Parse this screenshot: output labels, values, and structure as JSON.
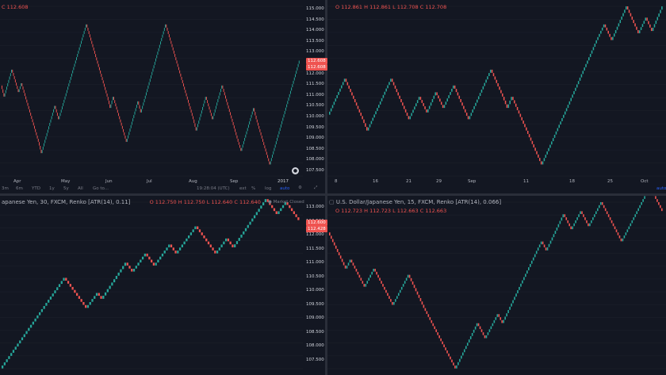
{
  "colors": {
    "up": "#26a69a",
    "down": "#ef5350",
    "bg": "#131722",
    "grid": "#1e222d"
  },
  "panes": [
    {
      "id": "tl",
      "header": {
        "title": "",
        "o": "",
        "h": "",
        "l": "",
        "c": "C 112.608",
        "watermark": ""
      },
      "y_ticks": [
        "115.000",
        "114.500",
        "114.000",
        "113.500",
        "113.000",
        "112.500",
        "112.000",
        "111.500",
        "111.000",
        "110.500",
        "110.000",
        "109.500",
        "109.000",
        "108.500",
        "108.000",
        "107.500"
      ],
      "x_ticks": [
        "Apr",
        "May",
        "Jun",
        "Jul",
        "Aug",
        "Sep",
        "2017"
      ],
      "price_tags": [
        "112.608",
        "112.608"
      ],
      "toolbar": [
        "3m",
        "6m",
        "YTD",
        "1y",
        "5y",
        "All",
        "Go to...",
        "19:28:04 (UTC)",
        "ext",
        "%",
        "log",
        "auto"
      ]
    },
    {
      "id": "tr",
      "header": {
        "title": "",
        "o": "O 112.861",
        "h": "H 112.861",
        "l": "L 112.708",
        "c": "C 112.708",
        "watermark": ""
      },
      "y_ticks": [],
      "x_ticks": [
        "8",
        "16",
        "21",
        "29",
        "Sep",
        "11",
        "18",
        "25",
        "Oct"
      ],
      "price_tags": [],
      "toolbar": [
        "auto"
      ]
    },
    {
      "id": "bl",
      "header": {
        "title": "apanese Yen, 30, FXCM, Renko [ATR(14), 0.11]",
        "o": "O 112.750",
        "h": "H 112.750",
        "l": "L 112.640",
        "c": "C 112.640",
        "watermark": "Market Closed"
      },
      "y_ticks": [
        "113.000",
        "112.500",
        "112.000",
        "111.500",
        "111.000",
        "110.500",
        "110.000",
        "109.500",
        "109.000",
        "108.500",
        "108.000",
        "107.500"
      ],
      "x_ticks": [],
      "price_tags": [
        "112.600",
        "112.428"
      ],
      "toolbar": []
    },
    {
      "id": "br",
      "header": {
        "title": "U.S. Dollar/Japanese Yen, 15, FXCM, Renko [ATR(14), 0.066]",
        "o": "O 112.723",
        "h": "H 112.723",
        "l": "L 112.663",
        "c": "C 112.663",
        "watermark": ""
      },
      "y_ticks": [],
      "x_ticks": [],
      "price_tags": [],
      "toolbar": []
    }
  ],
  "chart_data": [
    {
      "type": "renko",
      "pane": "tl",
      "ylim": [
        107.5,
        115.0
      ],
      "path": [
        111.5,
        111.0,
        112.2,
        111.2,
        111.6,
        109.0,
        108.5,
        110.6,
        110.0,
        114.2,
        111.0,
        110.5,
        111.0,
        109.0,
        110.8,
        110.3,
        111.5,
        113.0,
        114.2,
        110.0,
        109.5,
        111.0,
        110.0,
        111.5,
        109.0,
        108.6,
        110.5,
        110.0,
        108.0,
        112.6
      ]
    },
    {
      "type": "renko",
      "pane": "tr",
      "ylim": [
        107.5,
        115.0
      ],
      "path": [
        110.2,
        111.8,
        110.0,
        109.5,
        111.8,
        110.0,
        111.0,
        110.3,
        111.2,
        110.5,
        111.5,
        110.0,
        112.2,
        111.0,
        110.5,
        111.0,
        109.2,
        108.0,
        110.5,
        112.0,
        113.5,
        114.2,
        113.5,
        115.0,
        113.8,
        114.5,
        113.9,
        115.0
      ]
    },
    {
      "type": "renko",
      "pane": "bl",
      "ylim": [
        107.5,
        113.0
      ],
      "path": [
        107.5,
        110.5,
        109.5,
        110.0,
        109.8,
        111.0,
        110.7,
        111.3,
        110.9,
        111.6,
        111.3,
        112.2,
        111.3,
        111.8,
        111.5,
        113.1,
        112.8,
        112.6,
        113.0,
        112.4
      ]
    },
    {
      "type": "renko",
      "pane": "br",
      "ylim": [
        107.5,
        113.0
      ],
      "path": [
        112.0,
        110.8,
        111.1,
        110.2,
        110.8,
        110.3,
        109.6,
        110.3,
        110.6,
        109.5,
        109.0,
        108.2,
        107.5,
        109.0,
        108.5,
        109.3,
        109.0,
        110.2,
        111.5,
        111.7,
        111.4,
        112.6,
        112.1,
        112.7,
        112.2,
        113.0,
        112.5,
        111.7,
        112.6,
        113.5,
        112.7
      ]
    }
  ]
}
